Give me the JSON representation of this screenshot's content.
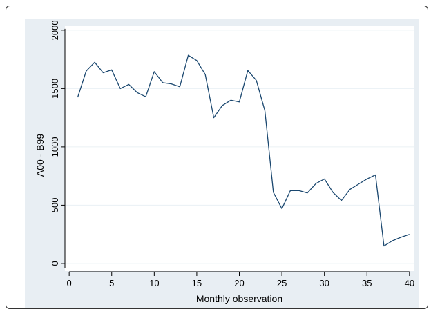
{
  "colors": {
    "outer_panel": "#e8eef3",
    "plot_background": "#ffffff",
    "gridline": "#eaf0f4",
    "line": "#1a476f",
    "axis": "#000000"
  },
  "chart_data": {
    "type": "line",
    "title": "",
    "xlabel": "Monthly observation",
    "ylabel": "A00 - B99",
    "xlim": [
      -0.5,
      40.5
    ],
    "ylim": [
      -30,
      2005
    ],
    "xticks": [
      0,
      5,
      10,
      15,
      20,
      25,
      30,
      35,
      40
    ],
    "yticks": [
      0,
      500,
      1000,
      1500,
      2000
    ],
    "grid": "horizontal",
    "legend": "none",
    "series": [
      {
        "x": [
          1,
          2,
          3,
          4,
          5,
          6,
          7,
          8,
          9,
          10,
          11,
          12,
          13,
          14,
          15,
          16,
          17,
          18,
          19,
          20,
          21,
          22,
          23,
          24,
          25,
          26,
          27,
          28,
          29,
          30,
          31,
          32,
          33,
          34,
          35,
          36,
          37,
          38,
          39,
          40
        ],
        "values": [
          1425,
          1650,
          1725,
          1635,
          1660,
          1500,
          1535,
          1465,
          1430,
          1645,
          1550,
          1540,
          1515,
          1785,
          1740,
          1620,
          1250,
          1355,
          1400,
          1385,
          1655,
          1570,
          1310,
          610,
          470,
          625,
          625,
          605,
          685,
          725,
          610,
          540,
          635,
          680,
          725,
          760,
          150,
          195,
          225,
          250
        ]
      }
    ]
  }
}
